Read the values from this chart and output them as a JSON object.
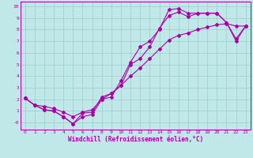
{
  "xlabel": "Windchill (Refroidissement éolien,°C)",
  "xlim": [
    -0.5,
    23.5
  ],
  "ylim": [
    -0.6,
    10.4
  ],
  "xticks": [
    0,
    1,
    2,
    3,
    4,
    5,
    6,
    7,
    8,
    9,
    10,
    11,
    12,
    13,
    14,
    15,
    16,
    17,
    18,
    19,
    20,
    21,
    22,
    23
  ],
  "yticks": [
    0,
    1,
    2,
    3,
    4,
    5,
    6,
    7,
    8,
    9,
    10
  ],
  "ytick_labels": [
    "-0",
    "1",
    "2",
    "3",
    "4",
    "5",
    "6",
    "7",
    "8",
    "9",
    "10"
  ],
  "background_color": "#c0e8e8",
  "grid_color": "#a0cccc",
  "line_color": "#aa00aa",
  "line1_x": [
    0,
    1,
    2,
    3,
    4,
    5,
    6,
    7,
    8,
    9,
    10,
    11,
    12,
    13,
    14,
    15,
    16,
    17,
    18,
    19,
    20,
    21,
    22,
    23
  ],
  "line1_y": [
    2.1,
    1.5,
    1.1,
    1.0,
    0.5,
    -0.1,
    0.5,
    0.7,
    2.0,
    2.2,
    3.6,
    5.2,
    6.5,
    7.0,
    8.0,
    9.7,
    9.8,
    9.4,
    9.4,
    9.4,
    9.4,
    8.6,
    7.0,
    8.3
  ],
  "line2_x": [
    0,
    1,
    2,
    3,
    4,
    5,
    6,
    7,
    8,
    9,
    10,
    11,
    12,
    13,
    14,
    15,
    16,
    17,
    18,
    19,
    20,
    21,
    22,
    23
  ],
  "line2_y": [
    2.1,
    1.5,
    1.1,
    1.0,
    0.5,
    -0.1,
    0.8,
    0.9,
    2.2,
    2.5,
    3.2,
    5.0,
    5.5,
    6.5,
    8.1,
    9.2,
    9.5,
    9.1,
    9.4,
    9.4,
    9.4,
    8.6,
    7.2,
    8.3
  ],
  "line3_x": [
    0,
    1,
    2,
    3,
    4,
    5,
    6,
    7,
    8,
    9,
    10,
    11,
    12,
    13,
    14,
    15,
    16,
    17,
    18,
    19,
    20,
    21,
    22,
    23
  ],
  "line3_y": [
    2.1,
    1.5,
    1.4,
    1.2,
    0.9,
    0.5,
    0.9,
    1.1,
    2.0,
    2.5,
    3.2,
    4.0,
    4.7,
    5.5,
    6.3,
    7.1,
    7.5,
    7.7,
    8.0,
    8.2,
    8.4,
    8.5,
    8.3,
    8.3
  ],
  "marker": "D",
  "markersize": 2.0,
  "linewidth": 0.8,
  "tick_fontsize": 4.5,
  "xlabel_fontsize": 5.5
}
